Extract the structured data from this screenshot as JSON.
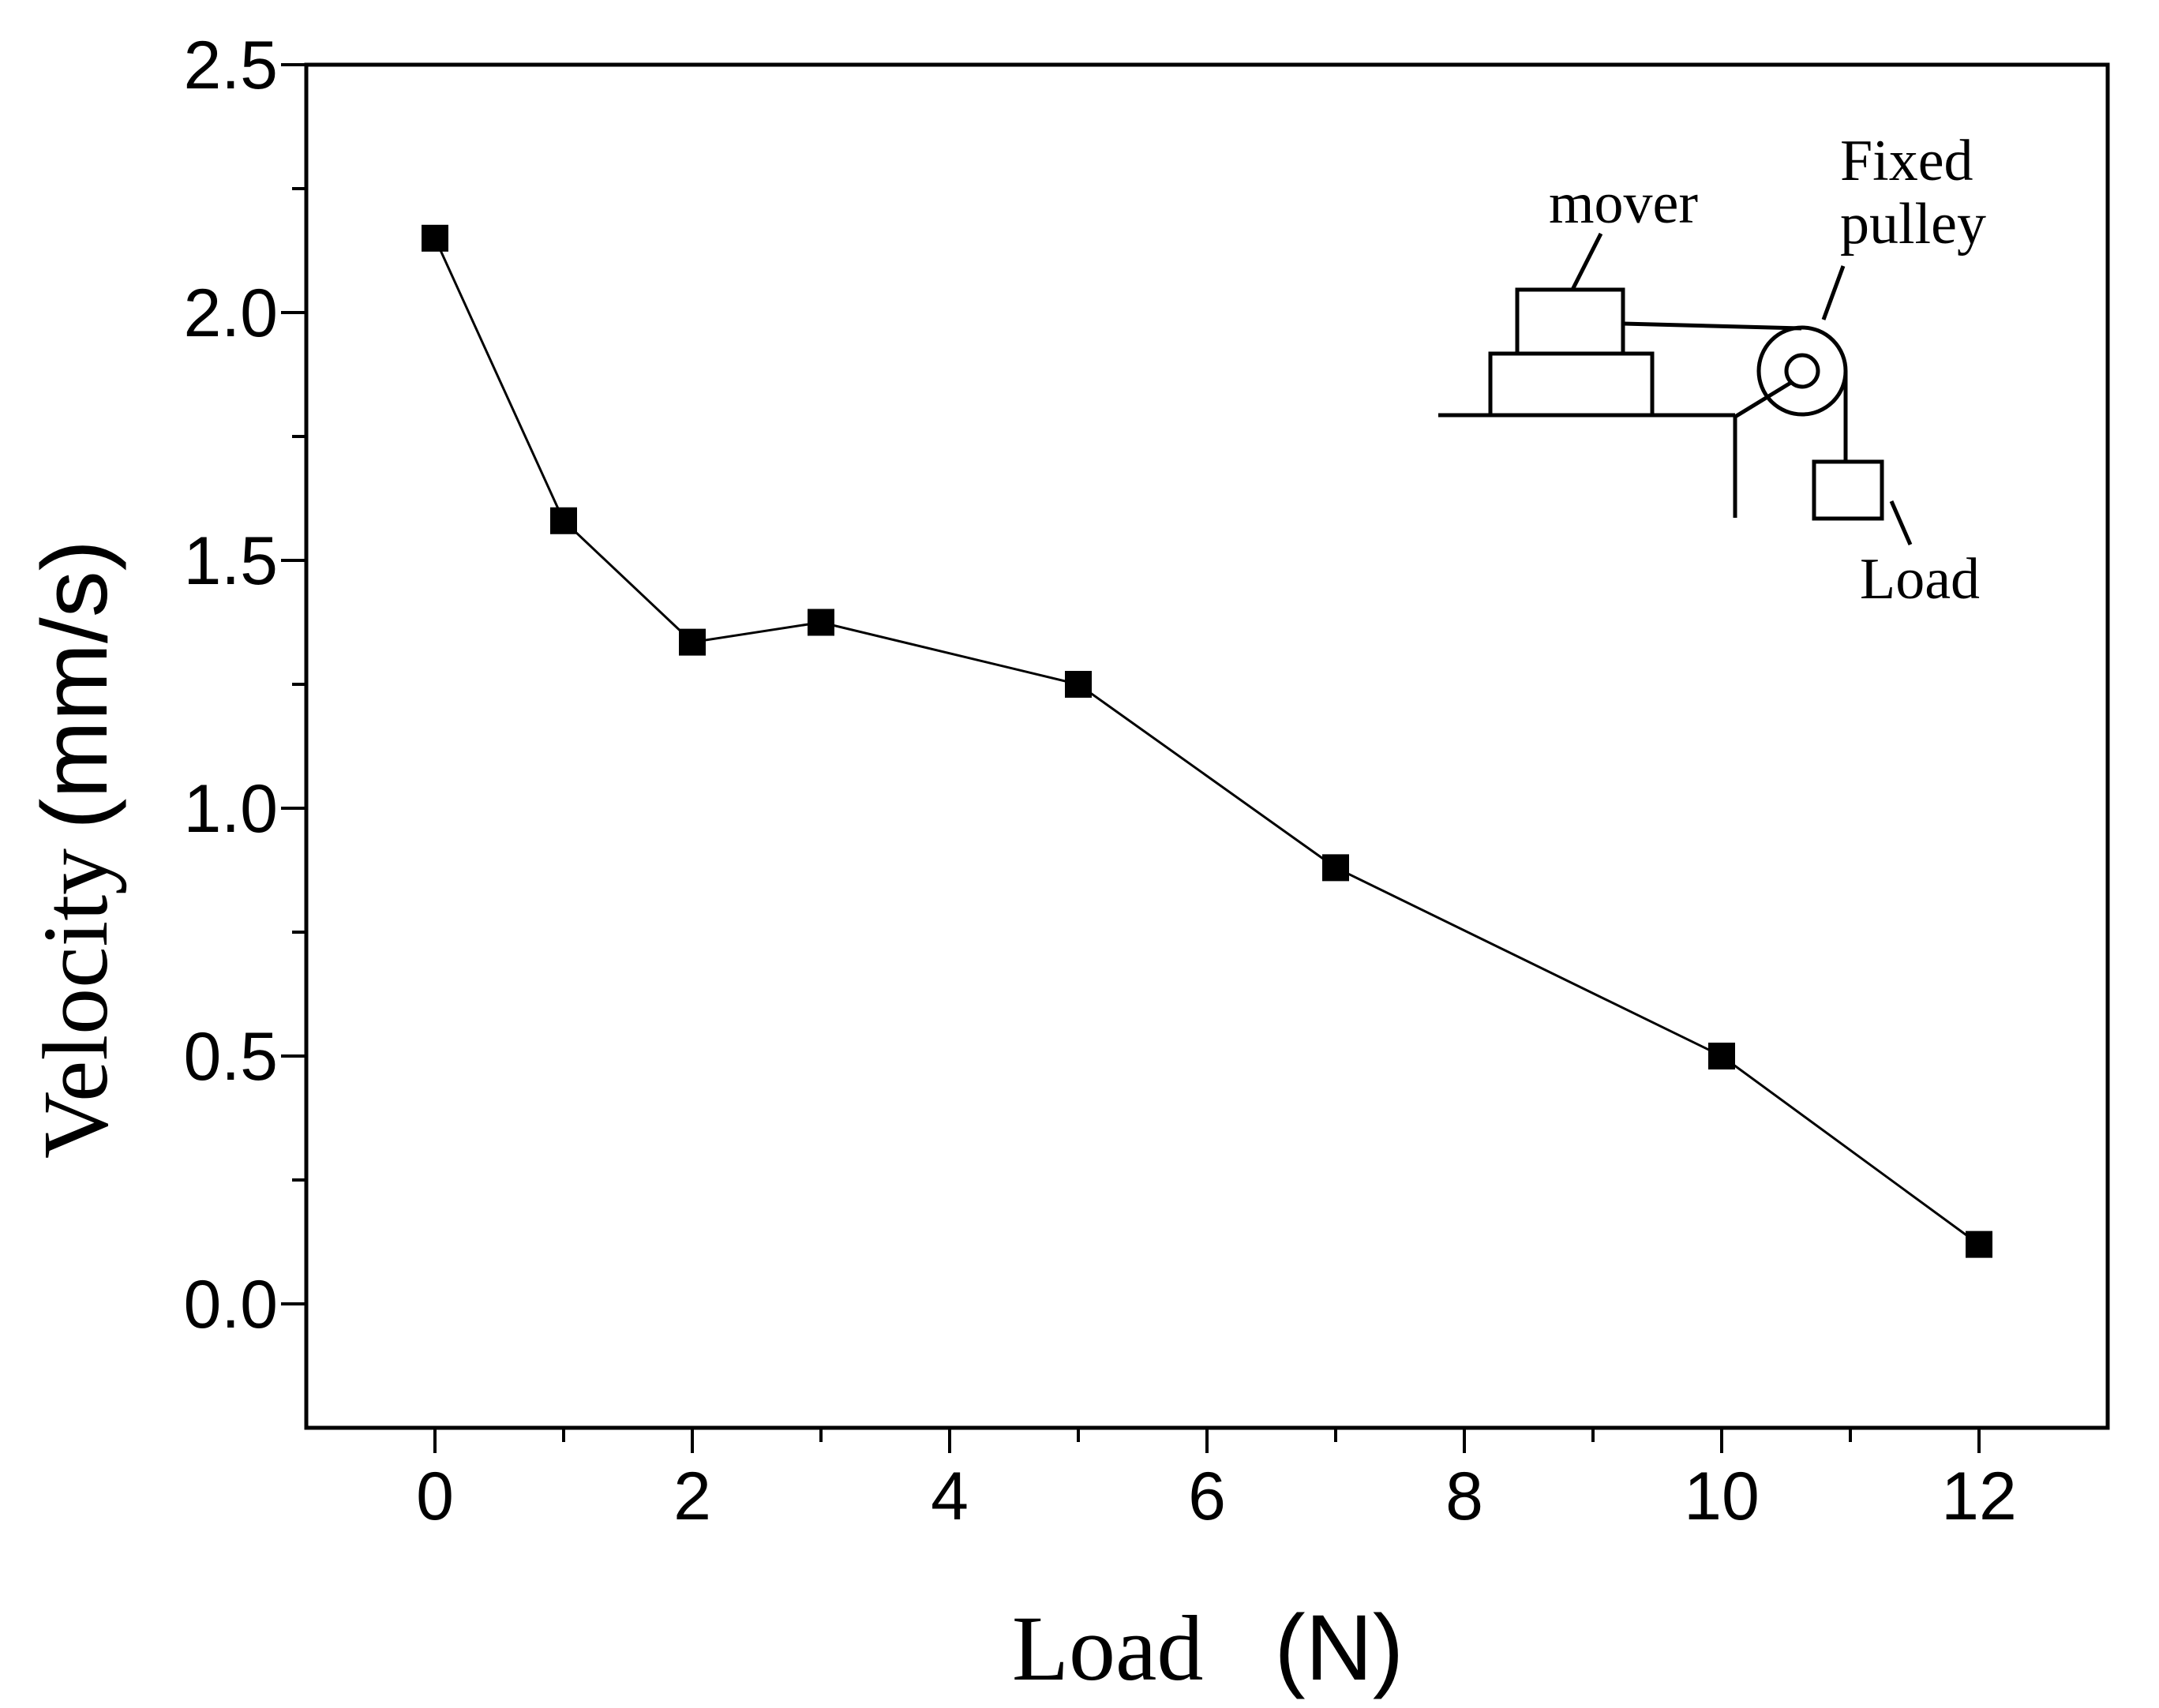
{
  "chart_data": {
    "type": "line",
    "title": "",
    "xlabel_main": "Load",
    "xlabel_unit": "(N)",
    "ylabel_main": "Velocity",
    "ylabel_unit": "(mm/s)",
    "xlim": [
      -1,
      13
    ],
    "ylim": [
      -0.25,
      2.5
    ],
    "x_ticks": [
      "0",
      "2",
      "4",
      "6",
      "8",
      "10",
      "12"
    ],
    "y_ticks": [
      "0.0",
      "0.5",
      "1.0",
      "1.5",
      "2.0",
      "2.5"
    ],
    "grid": false,
    "legend": "none",
    "marker": "square",
    "series": [
      {
        "x": [
          0,
          1,
          2,
          3,
          5,
          7,
          10,
          12
        ],
        "y": [
          2.15,
          1.58,
          1.335,
          1.375,
          1.25,
          0.88,
          0.5,
          0.12
        ],
        "color": "#000000"
      }
    ],
    "inset_labels": {
      "mover": "mover",
      "pulley_line1": "Fixed",
      "pulley_line2": "pulley",
      "load": "Load"
    }
  }
}
